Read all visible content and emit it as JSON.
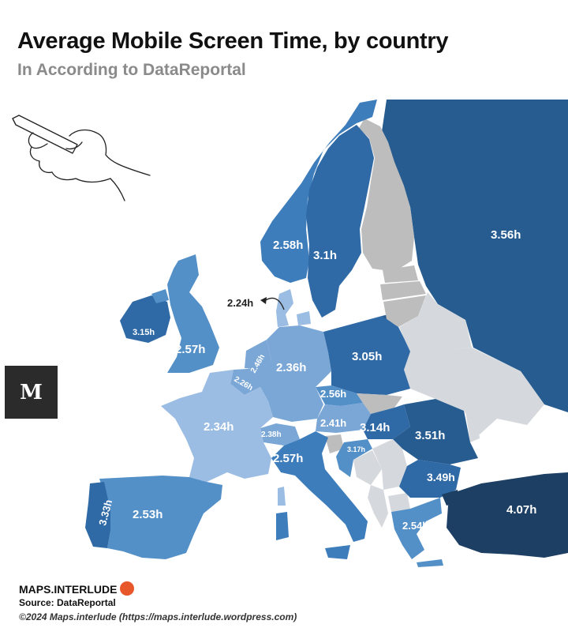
{
  "header": {
    "title": "Average Mobile Screen Time, by country",
    "subtitle": "In According to DataReportal"
  },
  "colors": {
    "c1": "#1c3f63",
    "c2": "#275c91",
    "c3": "#2f6aa6",
    "c4": "#3d7dbb",
    "c5": "#5490c8",
    "c6": "#7ba7d6",
    "c7": "#9bbde3",
    "nodata": "#bdbdbd",
    "light": "#d5d9dd"
  },
  "countries": [
    {
      "name": "Russia",
      "value": "3.56h"
    },
    {
      "name": "Norway",
      "value": "2.58h"
    },
    {
      "name": "Sweden",
      "value": "3.1h"
    },
    {
      "name": "Ireland",
      "value": "3.15h"
    },
    {
      "name": "United Kingdom",
      "value": "2.57h"
    },
    {
      "name": "Netherlands",
      "value": "2.46h"
    },
    {
      "name": "Belgium",
      "value": "2.26h"
    },
    {
      "name": "Germany",
      "value": "2.36h"
    },
    {
      "name": "Denmark",
      "value": "2.24h"
    },
    {
      "name": "Poland",
      "value": "3.05h"
    },
    {
      "name": "Czechia",
      "value": "2.56h"
    },
    {
      "name": "Austria",
      "value": "2.41h"
    },
    {
      "name": "Hungary",
      "value": "3.14h"
    },
    {
      "name": "Romania",
      "value": "3.51h"
    },
    {
      "name": "France",
      "value": "2.34h"
    },
    {
      "name": "Switzerland",
      "value": "2.38h"
    },
    {
      "name": "Croatia",
      "value": "3.17h"
    },
    {
      "name": "Italy",
      "value": "2.57h"
    },
    {
      "name": "Bulgaria",
      "value": "3.49h"
    },
    {
      "name": "Portugal",
      "value": "3.33h"
    },
    {
      "name": "Spain",
      "value": "2.53h"
    },
    {
      "name": "Greece",
      "value": "2.54h"
    },
    {
      "name": "Turkey",
      "value": "4.07h"
    }
  ],
  "footer": {
    "brand": "MAPS.INTERLUDE",
    "source": "Source: DataReportal",
    "copyright": "©2024 Maps.interlude (https://maps.interlude.wordpress.com)"
  },
  "logo": {
    "glyph": "M"
  }
}
